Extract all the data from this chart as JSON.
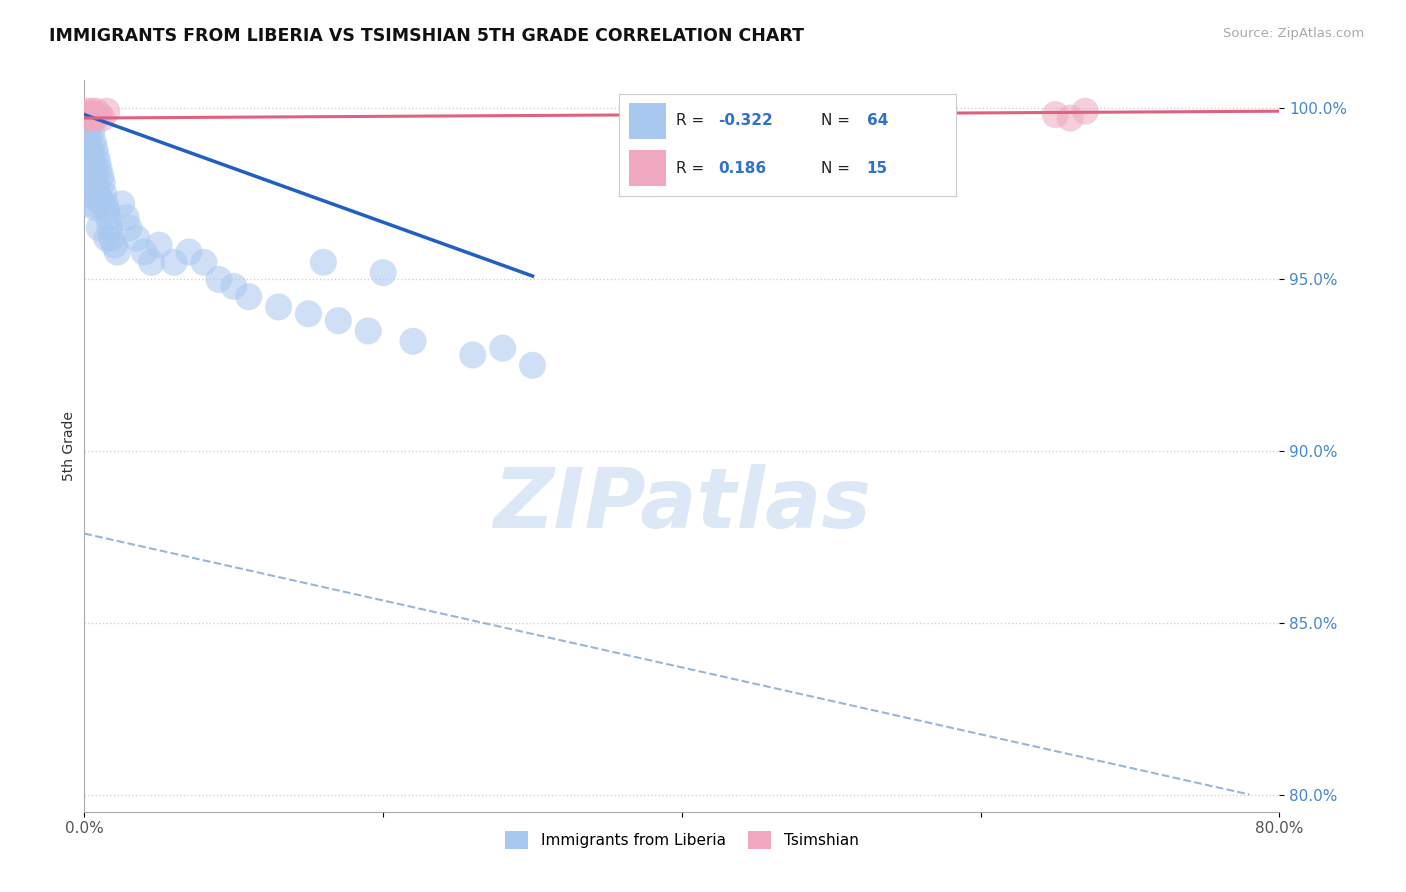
{
  "title": "IMMIGRANTS FROM LIBERIA VS TSIMSHIAN 5TH GRADE CORRELATION CHART",
  "source_text": "Source: ZipAtlas.com",
  "ylabel": "5th Grade",
  "xlim": [
    0.0,
    0.8
  ],
  "ylim": [
    0.795,
    1.008
  ],
  "yticks": [
    0.8,
    0.85,
    0.9,
    0.95,
    1.0
  ],
  "ytick_labels": [
    "80.0%",
    "85.0%",
    "90.0%",
    "95.0%",
    "100.0%"
  ],
  "xticks": [
    0.0,
    0.2,
    0.4,
    0.6,
    0.8
  ],
  "xtick_labels": [
    "0.0%",
    "",
    "",
    "",
    "80.0%"
  ],
  "r_blue": -0.322,
  "n_blue": 64,
  "r_pink": 0.186,
  "n_pink": 15,
  "blue_color": "#a8c8f0",
  "pink_color": "#f0a8c0",
  "blue_line_color": "#2060c0",
  "pink_line_color": "#e06080",
  "dashed_line_color": "#88aad0",
  "watermark_color": "#dce8f5",
  "legend_r_color": "#3070d0",
  "background_color": "#ffffff",
  "blue_scatter_x": [
    0.001,
    0.001,
    0.002,
    0.002,
    0.002,
    0.003,
    0.003,
    0.003,
    0.003,
    0.004,
    0.004,
    0.004,
    0.005,
    0.005,
    0.005,
    0.005,
    0.006,
    0.006,
    0.006,
    0.007,
    0.007,
    0.007,
    0.008,
    0.008,
    0.009,
    0.009,
    0.01,
    0.01,
    0.01,
    0.011,
    0.011,
    0.012,
    0.013,
    0.014,
    0.015,
    0.015,
    0.016,
    0.017,
    0.018,
    0.02,
    0.022,
    0.025,
    0.028,
    0.03,
    0.035,
    0.04,
    0.045,
    0.05,
    0.06,
    0.07,
    0.08,
    0.09,
    0.1,
    0.11,
    0.13,
    0.15,
    0.17,
    0.19,
    0.22,
    0.26,
    0.3,
    0.16,
    0.2,
    0.28
  ],
  "blue_scatter_y": [
    0.998,
    0.992,
    0.995,
    0.988,
    0.982,
    0.997,
    0.99,
    0.984,
    0.975,
    0.995,
    0.987,
    0.978,
    0.993,
    0.986,
    0.979,
    0.972,
    0.99,
    0.983,
    0.974,
    0.988,
    0.98,
    0.971,
    0.986,
    0.977,
    0.984,
    0.975,
    0.982,
    0.974,
    0.965,
    0.98,
    0.972,
    0.978,
    0.975,
    0.972,
    0.97,
    0.962,
    0.968,
    0.965,
    0.962,
    0.96,
    0.958,
    0.972,
    0.968,
    0.965,
    0.962,
    0.958,
    0.955,
    0.96,
    0.955,
    0.958,
    0.955,
    0.95,
    0.948,
    0.945,
    0.942,
    0.94,
    0.938,
    0.935,
    0.932,
    0.928,
    0.925,
    0.955,
    0.952,
    0.93
  ],
  "pink_scatter_x": [
    0.001,
    0.002,
    0.002,
    0.003,
    0.004,
    0.005,
    0.006,
    0.007,
    0.008,
    0.01,
    0.012,
    0.015,
    0.65,
    0.66,
    0.67
  ],
  "pink_scatter_y": [
    0.998,
    0.999,
    0.997,
    0.998,
    0.997,
    0.999,
    0.998,
    0.997,
    0.999,
    0.998,
    0.997,
    0.999,
    0.998,
    0.997,
    0.999
  ],
  "blue_line_x": [
    0.0,
    0.3
  ],
  "blue_line_y": [
    0.998,
    0.951
  ],
  "pink_line_x": [
    0.0,
    0.8
  ],
  "pink_line_y": [
    0.997,
    0.999
  ],
  "dash_line_x": [
    0.0,
    0.78
  ],
  "dash_line_y": [
    0.876,
    0.8
  ]
}
